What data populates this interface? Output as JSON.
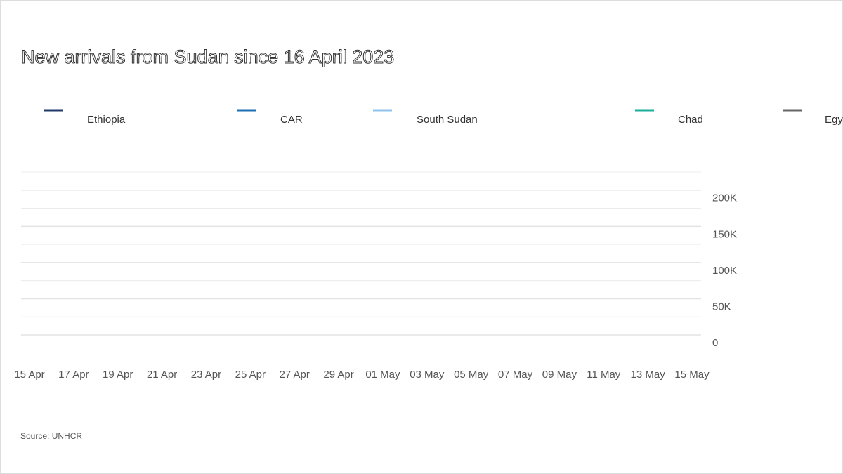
{
  "chart_data": {
    "type": "line",
    "title": "New arrivals from Sudan since 16 April 2023",
    "source": "Source: UNHCR",
    "categories": [
      "15 Apr",
      "17 Apr",
      "19 Apr",
      "21 Apr",
      "23 Apr",
      "25 Apr",
      "27 Apr",
      "29 Apr",
      "01 May",
      "03 May",
      "05 May",
      "07 May",
      "09 May",
      "11 May",
      "13 May",
      "15 May"
    ],
    "series": [
      {
        "name": "Ethiopia",
        "color": "#1f3a68",
        "values": [
          null,
          null,
          null,
          null,
          null,
          null,
          null,
          null,
          null,
          null,
          null,
          null,
          null,
          null,
          null,
          null
        ]
      },
      {
        "name": "CAR",
        "color": "#1d6fb3",
        "values": [
          null,
          null,
          null,
          null,
          null,
          null,
          null,
          null,
          null,
          null,
          null,
          null,
          null,
          null,
          null,
          null
        ]
      },
      {
        "name": "South Sudan",
        "color": "#8fc3ee",
        "values": [
          null,
          null,
          null,
          null,
          null,
          null,
          null,
          null,
          null,
          null,
          null,
          null,
          null,
          null,
          null,
          null
        ]
      },
      {
        "name": "Chad",
        "color": "#19ae98",
        "values": [
          null,
          null,
          null,
          null,
          null,
          null,
          null,
          null,
          null,
          null,
          null,
          null,
          null,
          null,
          null,
          null
        ]
      },
      {
        "name": "Egy",
        "color": "#666666",
        "values": [
          null,
          null,
          null,
          null,
          null,
          null,
          null,
          null,
          null,
          null,
          null,
          null,
          null,
          null,
          null,
          null
        ]
      }
    ],
    "ylim": [
      0,
      225000
    ],
    "yticks": [
      {
        "value": 0,
        "label": "0"
      },
      {
        "value": 50000,
        "label": "50K"
      },
      {
        "value": 100000,
        "label": "100K"
      },
      {
        "value": 150000,
        "label": "150K"
      },
      {
        "value": 200000,
        "label": "200K"
      }
    ],
    "yminorticks": [
      25000,
      75000,
      125000,
      175000,
      225000
    ],
    "grid": true
  }
}
